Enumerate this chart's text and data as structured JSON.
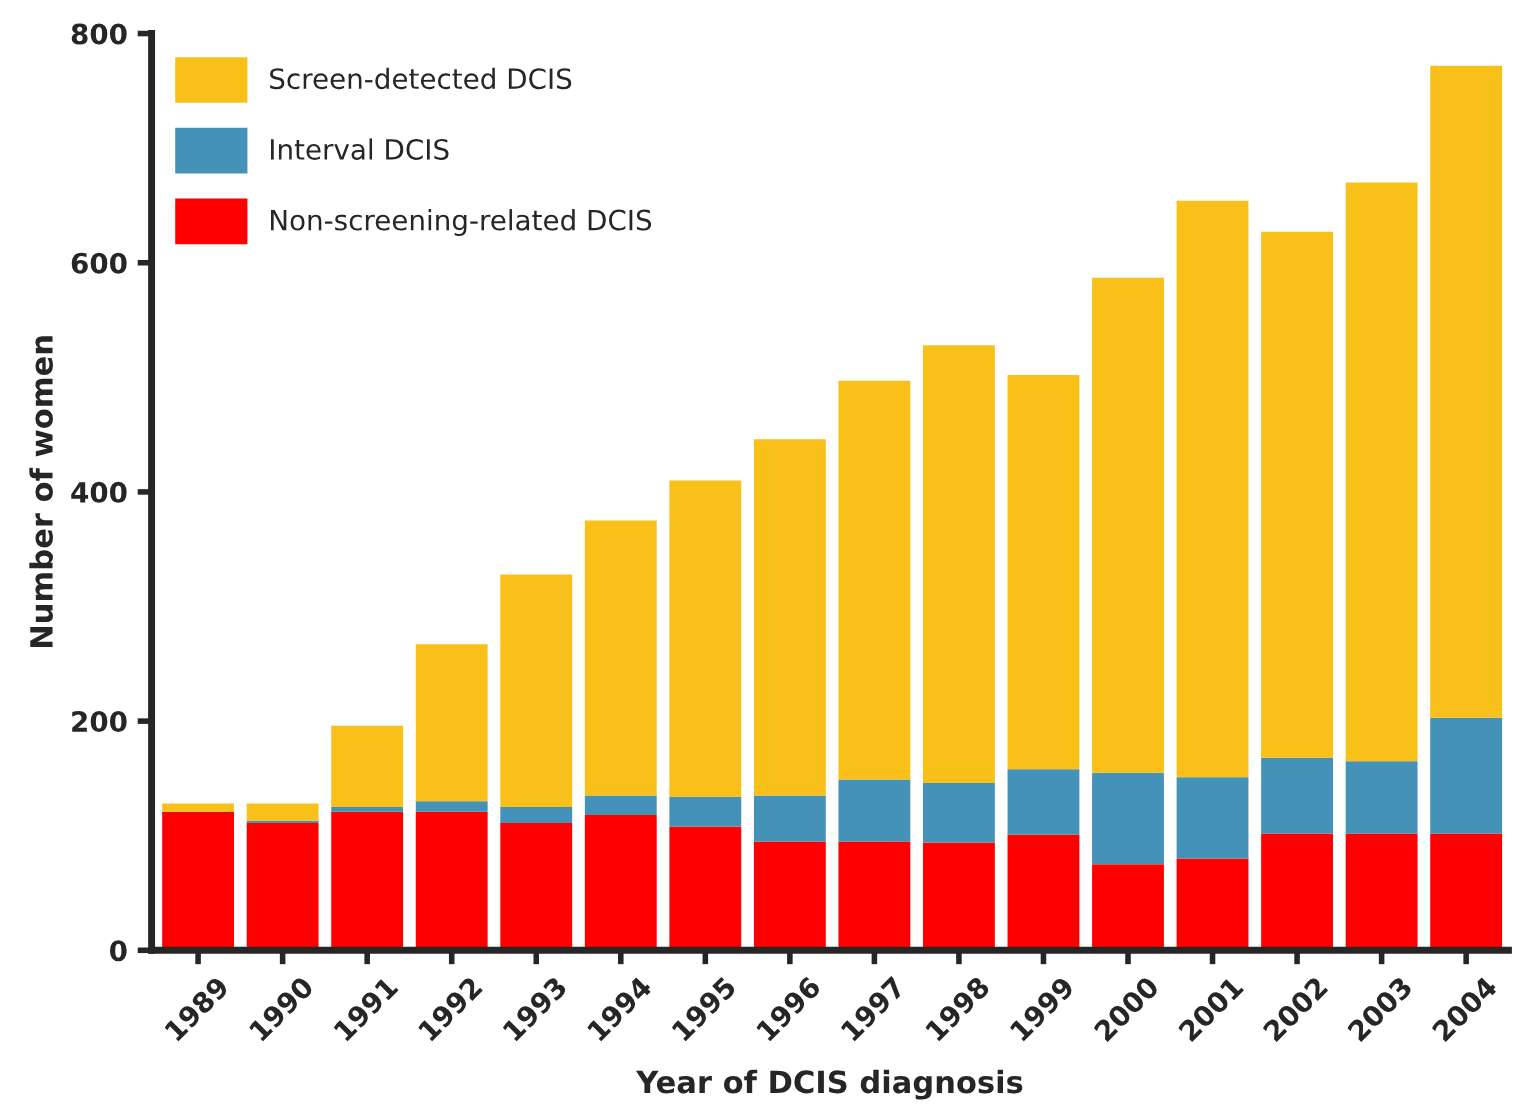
{
  "chart_data": {
    "type": "bar",
    "stacked": true,
    "xlabel": "Year of DCIS diagnosis",
    "ylabel": "Number of women",
    "categories": [
      "1989",
      "1990",
      "1991",
      "1992",
      "1993",
      "1994",
      "1995",
      "1996",
      "1997",
      "1998",
      "1999",
      "2000",
      "2001",
      "2002",
      "2003",
      "2004"
    ],
    "series": [
      {
        "name": "Non-screening-related DCIS",
        "color": "#ff0000",
        "values": [
          121,
          111,
          121,
          121,
          111,
          118,
          108,
          95,
          95,
          94,
          101,
          75,
          80,
          102,
          102,
          102
        ]
      },
      {
        "name": "Interval DCIS",
        "color": "#4592b8",
        "values": [
          0,
          2,
          4,
          9,
          14,
          17,
          26,
          40,
          54,
          52,
          57,
          80,
          71,
          66,
          63,
          101
        ]
      },
      {
        "name": "Screen-detected DCIS",
        "color": "#f9c01a",
        "values": [
          7,
          15,
          71,
          137,
          203,
          240,
          276,
          311,
          348,
          382,
          344,
          432,
          503,
          459,
          505,
          569
        ]
      }
    ],
    "ylim": [
      0,
      800
    ],
    "yticks": [
      0,
      200,
      400,
      600,
      800
    ],
    "grid": false,
    "legend": "top left"
  }
}
